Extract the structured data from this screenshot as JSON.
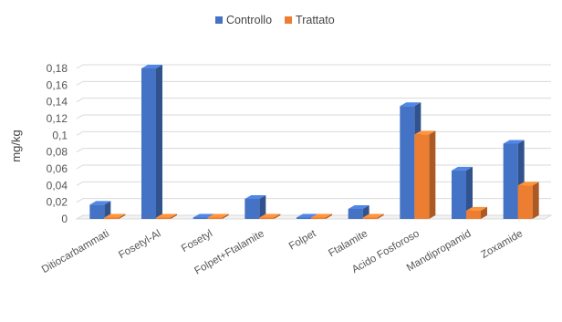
{
  "chart_data": {
    "type": "bar",
    "style": "3d-clustered-column",
    "title": "",
    "xlabel": "",
    "ylabel": "mg/kg",
    "ylim": [
      0,
      0.18
    ],
    "ytick_labels": [
      "0",
      "0,02",
      "0,04",
      "0,06",
      "0,08",
      "0,1",
      "0,12",
      "0,14",
      "0,16",
      "0,18"
    ],
    "ytick_values": [
      0,
      0.02,
      0.04,
      0.06,
      0.08,
      0.1,
      0.12,
      0.14,
      0.16,
      0.18
    ],
    "grid": true,
    "legend_position": "top",
    "categories": [
      "Ditiocarbammati",
      "Fosetyl-Al",
      "Fosetyl",
      "Folpet+Ftalamite",
      "Folpet",
      "Ftalamite",
      "Acido Fosforoso",
      "Mandipropamid",
      "Zoxamide"
    ],
    "series": [
      {
        "name": "Controllo",
        "color": "#4472C4",
        "values": [
          0.017,
          0.18,
          0.001,
          0.024,
          0.001,
          0.012,
          0.135,
          0.058,
          0.09
        ]
      },
      {
        "name": "Trattato",
        "color": "#ED7D31",
        "values": [
          0.001,
          0.001,
          0.001,
          0.001,
          0.001,
          0.001,
          0.101,
          0.01,
          0.04
        ]
      }
    ]
  }
}
